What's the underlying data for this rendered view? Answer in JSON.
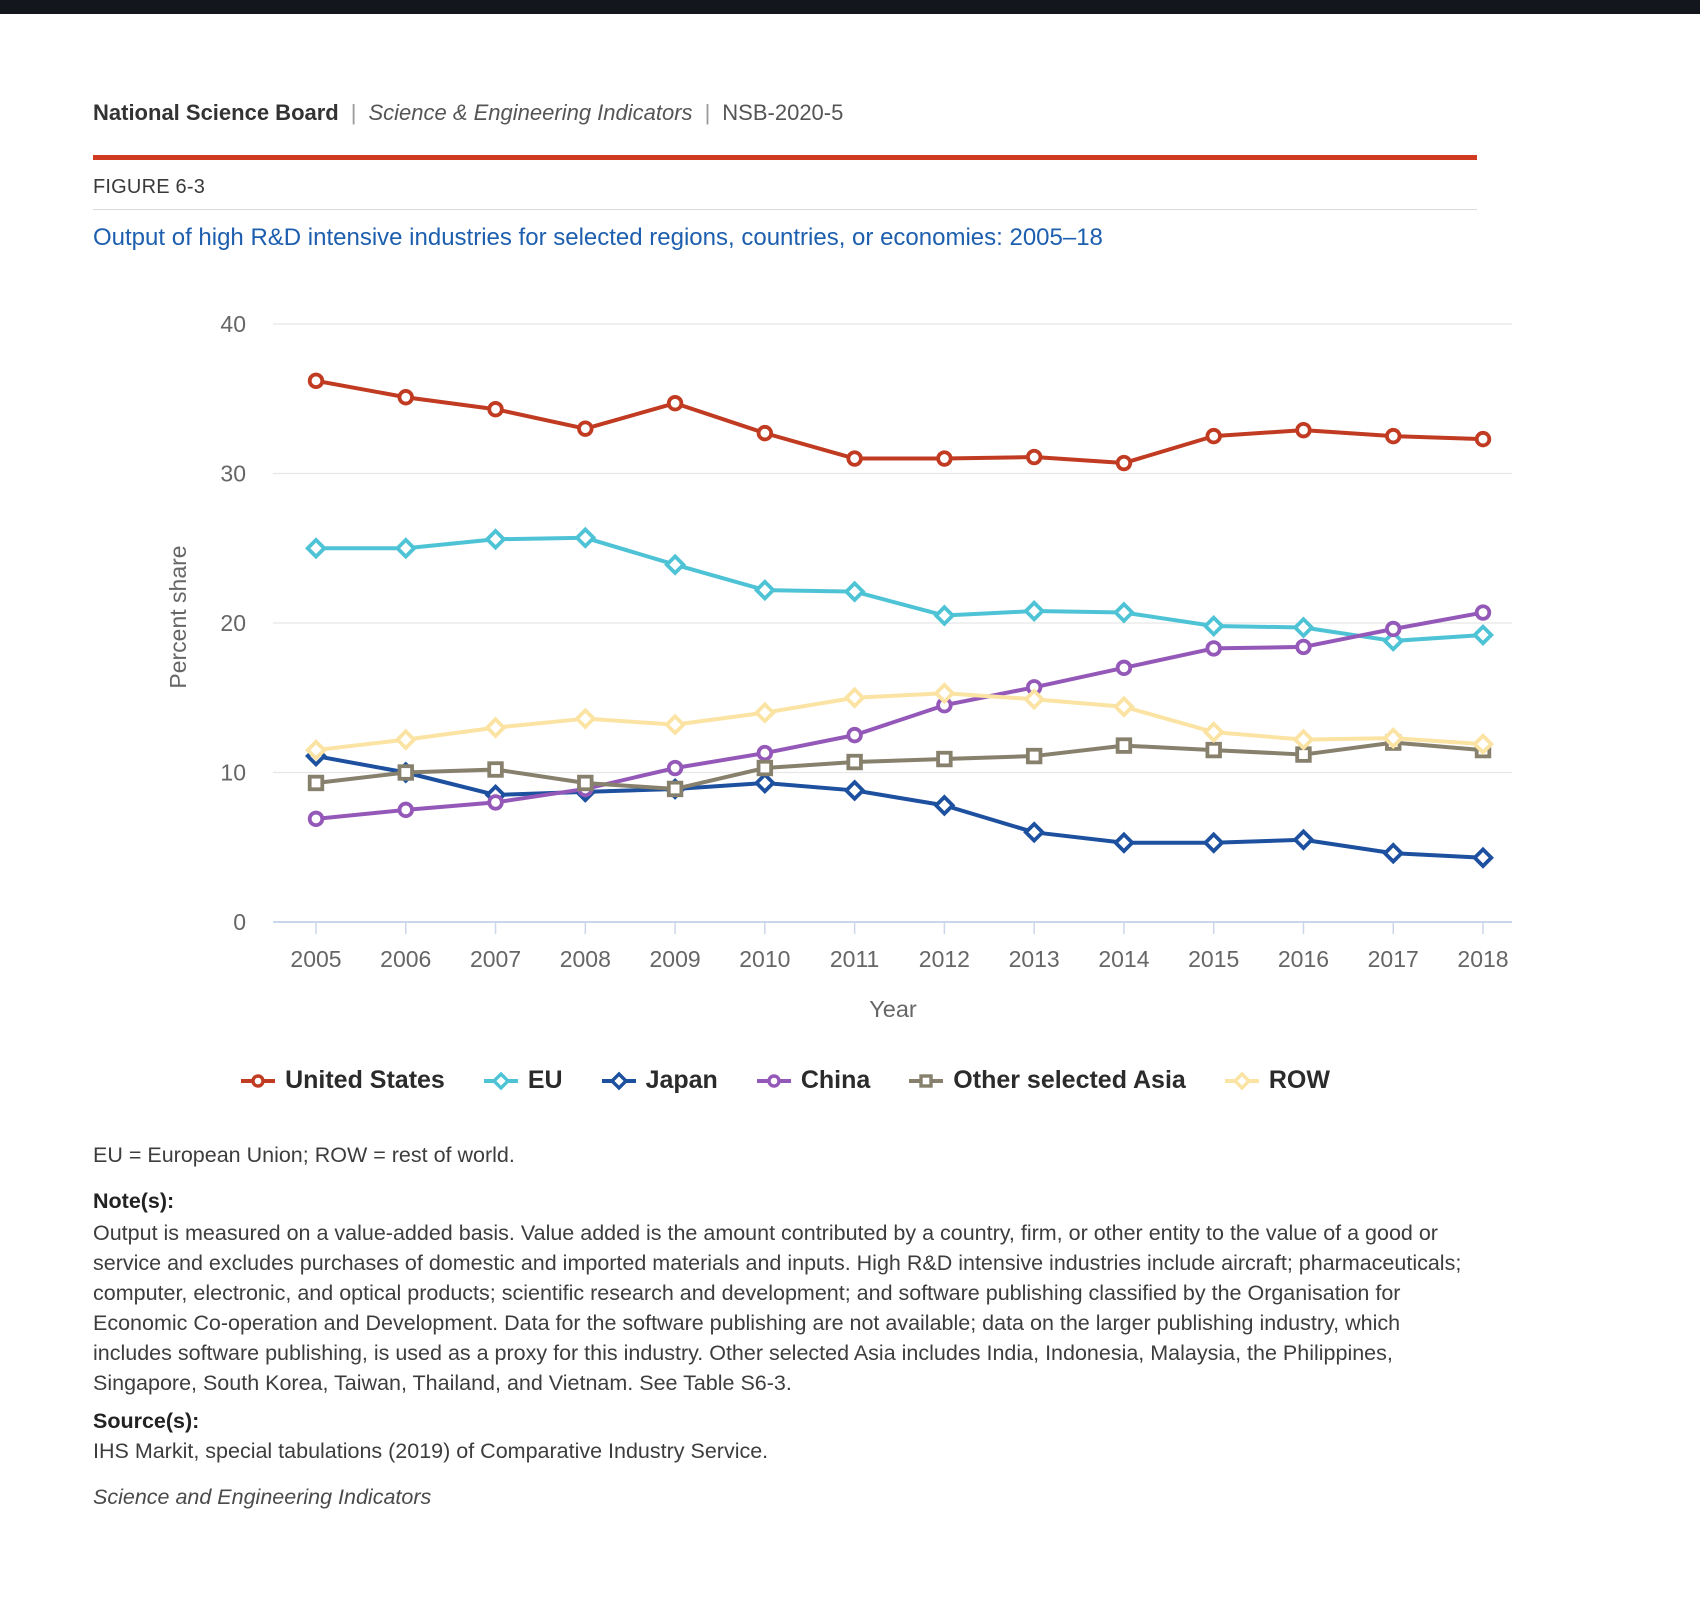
{
  "header": {
    "org": "National Science Board",
    "separator": "|",
    "publication": "Science & Engineering Indicators",
    "report_id": "NSB-2020-5"
  },
  "figure_label": "FIGURE 6-3",
  "title": "Output of high R&D intensive industries for selected regions, countries, or economies: 2005–18",
  "chart_data": {
    "type": "line",
    "x": [
      2005,
      2006,
      2007,
      2008,
      2009,
      2010,
      2011,
      2012,
      2013,
      2014,
      2015,
      2016,
      2017,
      2018
    ],
    "xlabel": "Year",
    "ylabel": "Percent share",
    "ylim": [
      0,
      40
    ],
    "yticks": [
      0,
      10,
      20,
      30,
      40
    ],
    "grid": true,
    "legend_position": "bottom",
    "axis_line_color": "#ccd6eb",
    "gridline_color": "#e6e6e6",
    "tick_label_color": "#666666",
    "series": [
      {
        "name": "United States",
        "color": "#c03b21",
        "marker": "circle",
        "values": [
          36.2,
          35.1,
          34.3,
          33.0,
          34.7,
          32.7,
          31.0,
          31.0,
          31.1,
          30.7,
          32.5,
          32.9,
          32.5,
          32.3
        ]
      },
      {
        "name": "EU",
        "color": "#4fc3d6",
        "marker": "diamond",
        "values": [
          25.0,
          25.0,
          25.6,
          25.7,
          23.9,
          22.2,
          22.1,
          20.5,
          20.8,
          20.7,
          19.8,
          19.7,
          18.8,
          19.2
        ]
      },
      {
        "name": "Japan",
        "color": "#1d509f",
        "marker": "diamond",
        "values": [
          11.1,
          10.0,
          8.5,
          8.7,
          8.9,
          9.3,
          8.8,
          7.8,
          6.0,
          5.3,
          5.3,
          5.5,
          4.6,
          4.3
        ]
      },
      {
        "name": "China",
        "color": "#9459b8",
        "marker": "circle",
        "values": [
          6.9,
          7.5,
          8.0,
          8.9,
          10.3,
          11.3,
          12.5,
          14.5,
          15.7,
          17.0,
          18.3,
          18.4,
          19.6,
          20.7
        ]
      },
      {
        "name": "Other selected Asia",
        "color": "#86806c",
        "marker": "square",
        "values": [
          9.3,
          10.0,
          10.2,
          9.3,
          8.9,
          10.3,
          10.7,
          10.9,
          11.1,
          11.8,
          11.5,
          11.2,
          12.0,
          11.5
        ]
      },
      {
        "name": "ROW",
        "color": "#fbe3a3",
        "marker": "diamond",
        "values": [
          11.5,
          12.2,
          13.0,
          13.6,
          13.2,
          14.0,
          15.0,
          15.3,
          14.9,
          14.4,
          12.7,
          12.2,
          12.3,
          11.9
        ]
      }
    ]
  },
  "footnotes": {
    "abbrev": "EU = European Union; ROW = rest of world.",
    "notes_label": "Note(s):",
    "notes": "Output is measured on a value-added basis. Value added is the amount contributed by a country, firm, or other entity to the value of a good or service and excludes purchases of domestic and imported materials and inputs. High R&D intensive industries include aircraft; pharmaceuticals; computer, electronic, and optical products; scientific research and development; and software publishing classified by the Organisation for Economic Co-operation and Development. Data for the software publishing are not available; data on the larger publishing industry, which includes software publishing, is used as a proxy for this industry. Other selected Asia includes India, Indonesia, Malaysia, the Philippines, Singapore, South Korea, Taiwan, Thailand, and Vietnam. See Table S6-3.",
    "source_label": "Source(s):",
    "source": "IHS Markit, special tabulations (2019) of Comparative Industry Service.",
    "publication": "Science and Engineering Indicators"
  }
}
